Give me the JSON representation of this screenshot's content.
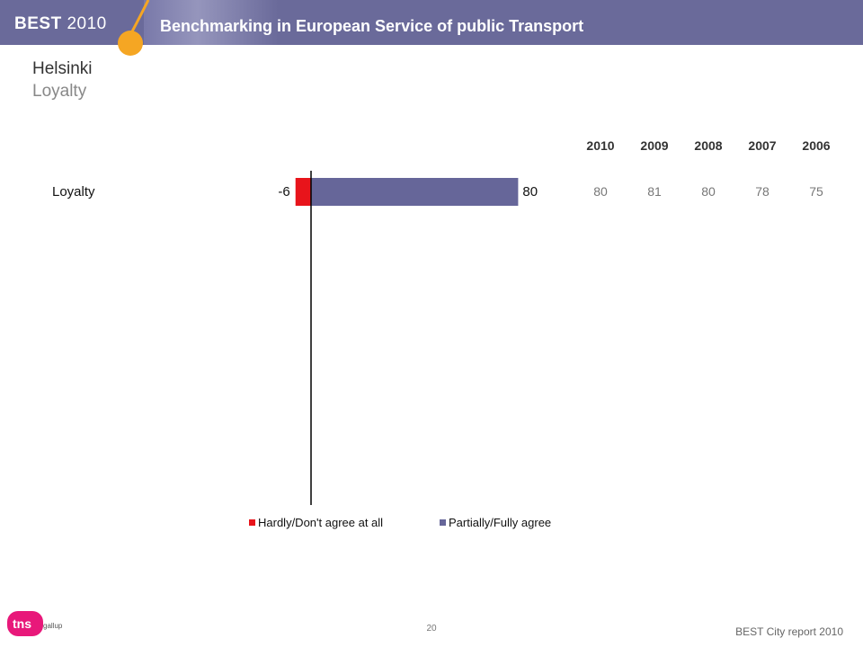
{
  "header": {
    "brand": "BEST",
    "brand_year": "2010",
    "tagline": "Benchmarking in European Service of public Transport"
  },
  "title": {
    "city": "Helsinki",
    "topic": "Loyalty"
  },
  "colors": {
    "banner": "#6a6a9a",
    "accent_orange": "#f5a623",
    "negative": "#e8141b",
    "positive": "#666699"
  },
  "chart_data": {
    "type": "bar",
    "orientation": "horizontal",
    "diverging": true,
    "categories": [
      "Loyalty"
    ],
    "series": [
      {
        "name": "Hardly/Don't agree at all",
        "values": [
          -6
        ],
        "color": "#e8141b"
      },
      {
        "name": "Partially/Fully agree",
        "values": [
          80
        ],
        "color": "#666699"
      }
    ],
    "data_labels": [
      "-6",
      "80"
    ],
    "legend_position": "bottom",
    "history": {
      "years": [
        "2010",
        "2009",
        "2008",
        "2007",
        "2006"
      ],
      "values": [
        "80",
        "81",
        "80",
        "78",
        "75"
      ]
    }
  },
  "footer": {
    "page_number": "20",
    "report": "BEST City report 2010",
    "logo_text": "tns",
    "logo_sub": "gallup"
  }
}
